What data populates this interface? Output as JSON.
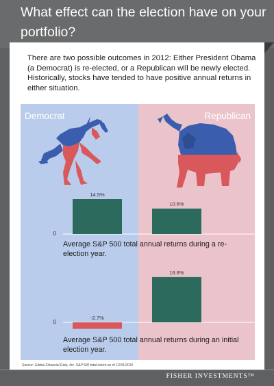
{
  "header": {
    "title": "What effect can the election have on your portfolio?"
  },
  "intro": {
    "text": "There are two possible outcomes in 2012: Either President Obama (a Democrat) is re-elected, or a Republican will be newly elected. Historically, stocks have tended to have positive annual returns in either situation."
  },
  "panels": {
    "left_label": "Democrat",
    "right_label": "Republican"
  },
  "colors": {
    "democrat_bg": "#b9cceb",
    "republican_bg": "#ebc4cb",
    "bar_green": "#2d6a5e",
    "bar_red": "#d9585c",
    "mascot_blue": "#3b5dae",
    "mascot_red": "#d9585c"
  },
  "icons": {
    "left": "donkey-icon",
    "right": "elephant-icon"
  },
  "chart_data": [
    {
      "type": "bar",
      "categories": [
        "Democrat",
        "Republican"
      ],
      "values": [
        14.5,
        10.6
      ],
      "data_labels": [
        "14.5%",
        "10.6%"
      ],
      "zero_label": "0",
      "caption": "Average S&P 500 total annual returns during a re-election year."
    },
    {
      "type": "bar",
      "categories": [
        "Democrat",
        "Republican"
      ],
      "values": [
        -2.7,
        18.8
      ],
      "data_labels": [
        "-2.7%",
        "18.8%"
      ],
      "zero_label": "0",
      "caption": "Average S&P 500 total annual returns during an initial election year."
    }
  ],
  "footer": {
    "source": "Source: Global Financial Data, Inc. S&P 500 total return as of 12/31/2010",
    "brand": "FISHER INVESTMENTS™"
  }
}
